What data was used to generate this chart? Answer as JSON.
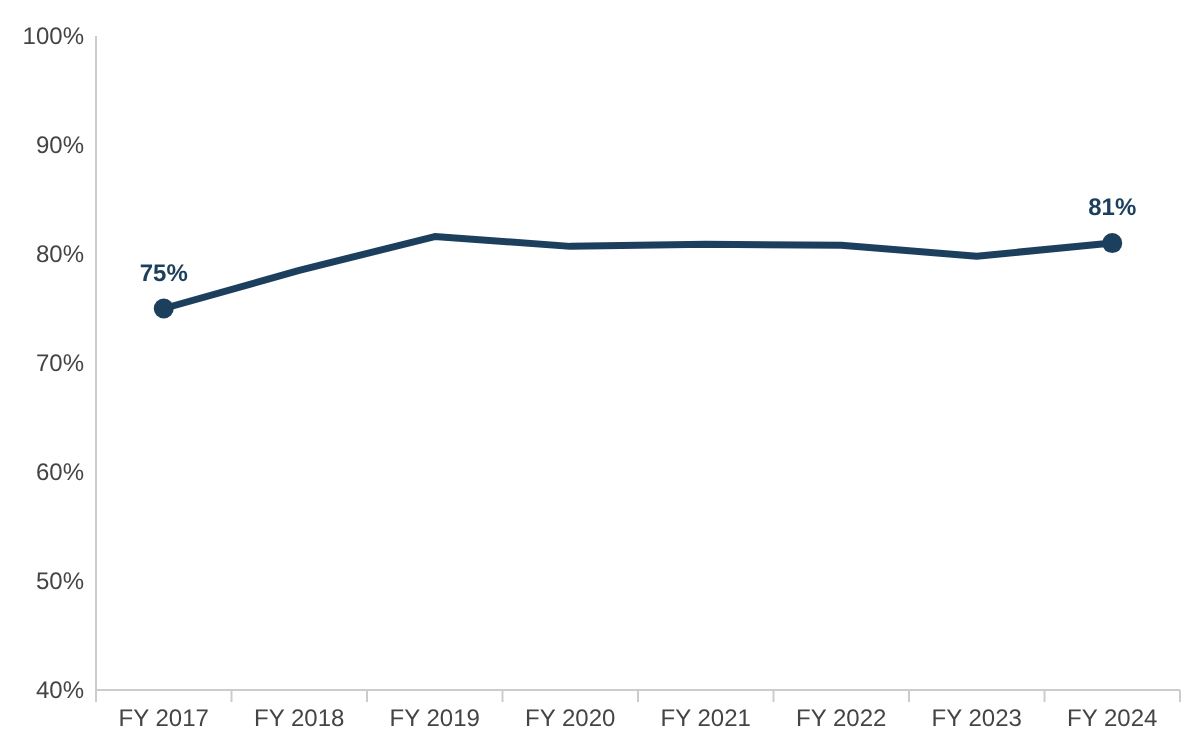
{
  "chart_data": {
    "type": "line",
    "categories": [
      "FY 2017",
      "FY 2018",
      "FY 2019",
      "FY 2020",
      "FY 2021",
      "FY 2022",
      "FY 2023",
      "FY 2024"
    ],
    "series": [
      {
        "color": "#1c3f5e",
        "values": [
          75,
          78.5,
          81.6,
          80.7,
          80.9,
          80.8,
          79.8,
          81
        ],
        "value_labels": [
          "75%",
          null,
          null,
          null,
          null,
          null,
          null,
          "81%"
        ]
      }
    ],
    "ylim": [
      40,
      100
    ],
    "yticks": [
      {
        "value": 40,
        "label": "40%"
      },
      {
        "value": 50,
        "label": "50%"
      },
      {
        "value": 60,
        "label": "60%"
      },
      {
        "value": 70,
        "label": "70%"
      },
      {
        "value": 80,
        "label": "80%"
      },
      {
        "value": 90,
        "label": "90%"
      },
      {
        "value": 100,
        "label": "100%"
      }
    ],
    "grid": false,
    "line_style": "solid"
  }
}
